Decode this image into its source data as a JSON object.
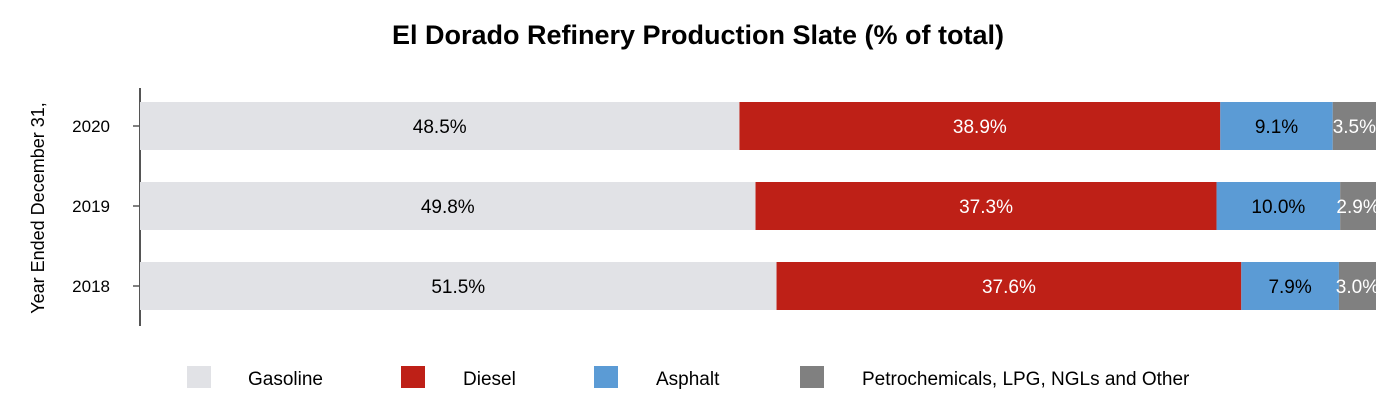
{
  "chart_data": {
    "type": "bar",
    "orientation": "horizontal",
    "stacked": true,
    "title": "El Dorado Refinery Production Slate (% of total)",
    "ylabel": "Year Ended December 31,",
    "xlabel": "",
    "categories": [
      "2020",
      "2019",
      "2018"
    ],
    "series": [
      {
        "name": "Gasoline",
        "color": "#e1e2e6",
        "label_color": "#000000",
        "values": [
          48.5,
          49.8,
          51.5
        ],
        "labels": [
          "48.5%",
          "49.8%",
          "51.5%"
        ]
      },
      {
        "name": "Diesel",
        "color": "#be2017",
        "label_color": "#ffffff",
        "values": [
          38.9,
          37.3,
          37.6
        ],
        "labels": [
          "38.9%",
          "37.3%",
          "37.6%"
        ]
      },
      {
        "name": "Asphalt",
        "color": "#5b9bd5",
        "label_color": "#000000",
        "values": [
          9.1,
          10.0,
          7.9
        ],
        "labels": [
          "9.1%",
          "10.0%",
          "7.9%"
        ]
      },
      {
        "name": "Petrochemicals, LPG, NGLs and Other",
        "color": "#808080",
        "label_color": "#ffffff",
        "values": [
          3.5,
          2.9,
          3.0
        ],
        "labels": [
          "3.5%",
          "2.9%",
          "3.0%"
        ]
      }
    ],
    "xlim": [
      0,
      100
    ],
    "grid": false,
    "legend_position": "bottom"
  }
}
